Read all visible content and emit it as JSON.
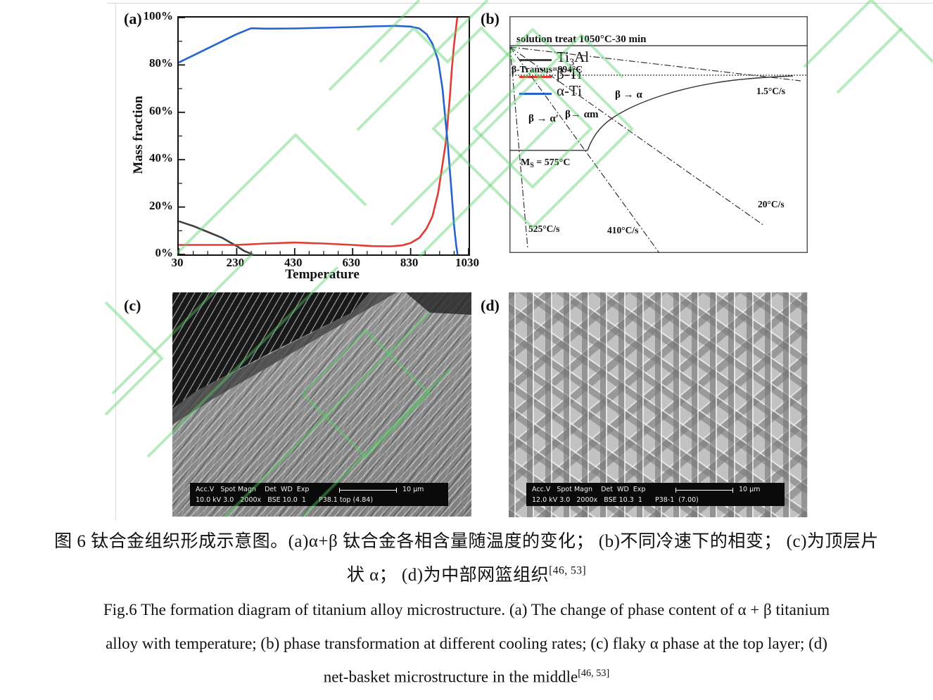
{
  "watermark_color": "#55cf69",
  "chart_data": [
    {
      "type": "line",
      "title": "",
      "xlabel": "Temperature",
      "ylabel": "Mass fraction",
      "xlim": [
        30,
        1030
      ],
      "ylim": [
        0,
        100
      ],
      "grid": false,
      "legend_position": "upper right",
      "xticks": {
        "values": [
          30,
          230,
          430,
          630,
          830,
          1030
        ],
        "labels": [
          "30",
          "230",
          "430",
          "630",
          "830",
          "1030"
        ]
      },
      "yticks": {
        "values": [
          0,
          20,
          40,
          60,
          80,
          100
        ],
        "labels": [
          "0%",
          "20%",
          "40%",
          "60%",
          "80%",
          "100%"
        ]
      },
      "series": [
        {
          "name": "Ti3Al",
          "color": "#3f3f3f",
          "points": [
            [
              30,
              14
            ],
            [
              80,
              12
            ],
            [
              130,
              9.5
            ],
            [
              180,
              7
            ],
            [
              230,
              3.5
            ],
            [
              255,
              1.5
            ],
            [
              285,
              0
            ]
          ]
        },
        {
          "name": "β-Ti",
          "color": "#e23b34",
          "points": [
            [
              30,
              4
            ],
            [
              130,
              4
            ],
            [
              230,
              4
            ],
            [
              330,
              4.6
            ],
            [
              430,
              5
            ],
            [
              530,
              4.6
            ],
            [
              630,
              4
            ],
            [
              700,
              3.5
            ],
            [
              760,
              3.4
            ],
            [
              800,
              3.8
            ],
            [
              830,
              4.8
            ],
            [
              860,
              7
            ],
            [
              885,
              11
            ],
            [
              905,
              16
            ],
            [
              925,
              26
            ],
            [
              940,
              38
            ],
            [
              952,
              48
            ],
            [
              958,
              56
            ],
            [
              965,
              66
            ],
            [
              972,
              78
            ],
            [
              980,
              89
            ],
            [
              986,
              95
            ],
            [
              991,
              100
            ]
          ]
        },
        {
          "name": "α-Ti",
          "color": "#2563cf",
          "points": [
            [
              30,
              81
            ],
            [
              80,
              84
            ],
            [
              130,
              87
            ],
            [
              180,
              90
            ],
            [
              230,
              93
            ],
            [
              280,
              95.5
            ],
            [
              330,
              95.3
            ],
            [
              430,
              95.4
            ],
            [
              530,
              95.7
            ],
            [
              630,
              96
            ],
            [
              700,
              96.3
            ],
            [
              780,
              96.5
            ],
            [
              830,
              96.2
            ],
            [
              860,
              95.4
            ],
            [
              885,
              93
            ],
            [
              905,
              89
            ],
            [
              925,
              82
            ],
            [
              940,
              70
            ],
            [
              950,
              57
            ],
            [
              958,
              47
            ],
            [
              965,
              36
            ],
            [
              972,
              25
            ],
            [
              980,
              12
            ],
            [
              987,
              4
            ],
            [
              992,
              0
            ]
          ]
        }
      ]
    },
    {
      "type": "diagram",
      "description": "Schematic continuous-cooling transformation diagram for titanium alloy",
      "annotations": [
        "solution treat 1050°C-30 min",
        "β-Transus=994°C",
        "β → α",
        "β → α′",
        "β→ αm",
        "Ms = 575°C",
        "1.5°C/s",
        "20°C/s",
        "410°C/s",
        "525°C/s"
      ]
    }
  ],
  "panel_a": {
    "label": "(a)",
    "ylabel": "Mass fraction",
    "xlabel": "Temperature",
    "legend": [
      {
        "pre": "Ti",
        "sub": "3",
        "post": "Al"
      },
      {
        "pre": "β-Ti",
        "sub": "",
        "post": ""
      },
      {
        "pre": "α-Ti",
        "sub": "",
        "post": ""
      }
    ]
  },
  "panel_b": {
    "label": "(b)",
    "solution_treat": "solution treat 1050°C-30 min",
    "beta_transus": "β-Transus=994°C",
    "beta_to_alpha": "β → α",
    "beta_to_alpha_prime": "β → α′",
    "beta_to_alpha_m": "β→ αm",
    "ms_m": "M",
    "ms_s": "S",
    "ms_eq": " = 575°C",
    "rate_1_5": "1.5°C/s",
    "rate_20": "20°C/s",
    "rate_410": "410°C/s",
    "rate_525": "525°C/s"
  },
  "panel_c": {
    "label": "(c)",
    "bar_line1": "Acc.V   Spot Magn    Det  WD  Exp",
    "bar_line2": "10.0 kV 3.0   2000x   BSE 10.0  1      P38.1 top (4.84)",
    "scale_label": "10 μm"
  },
  "panel_d": {
    "label": "(d)",
    "bar_line1": "Acc.V   Spot Magn    Det  WD  Exp",
    "bar_line2": "12.0 kV 3.0   2000x   BSE 10.3  1      P38-1  (7.00)",
    "scale_label": "10 μm"
  },
  "caption_zh": {
    "line1": "图 6 钛合金组织形成示意图。(a)α+β 钛合金各相含量随温度的变化； (b)不同冷速下的相变； (c)为顶层片",
    "line2": "状 α； (d)为中部网篮组织",
    "ref": "[46, 53]"
  },
  "caption_en": {
    "line1": "Fig.6 The formation diagram of titanium alloy microstructure. (a) The change of phase content of α + β titanium",
    "line2": "alloy with temperature; (b) phase transformation at different cooling rates; (c) flaky α phase at the top layer; (d)",
    "line3": "net-basket microstructure in the middle",
    "ref": "[46, 53]"
  }
}
